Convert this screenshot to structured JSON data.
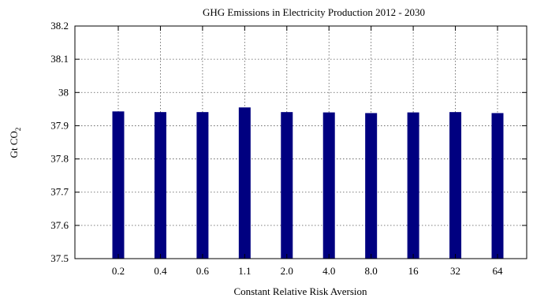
{
  "chart_data": {
    "type": "bar",
    "title": "GHG Emissions in Electricity Production 2012 - 2030",
    "xlabel": "Constant Relative Risk Aversion",
    "ylabel_main": "Gt CO",
    "ylabel_sub": "2",
    "categories": [
      "0.2",
      "0.4",
      "0.6",
      "1.1",
      "2.0",
      "4.0",
      "8.0",
      "16",
      "32",
      "64"
    ],
    "values": [
      37.943,
      37.941,
      37.941,
      37.955,
      37.941,
      37.94,
      37.938,
      37.94,
      37.941,
      37.938
    ],
    "yticks": [
      "37.5",
      "37.6",
      "37.7",
      "37.8",
      "37.9",
      "38",
      "38.1",
      "38.2"
    ],
    "ylim": [
      37.5,
      38.2
    ],
    "grid": true,
    "bar_color": "#000080"
  }
}
